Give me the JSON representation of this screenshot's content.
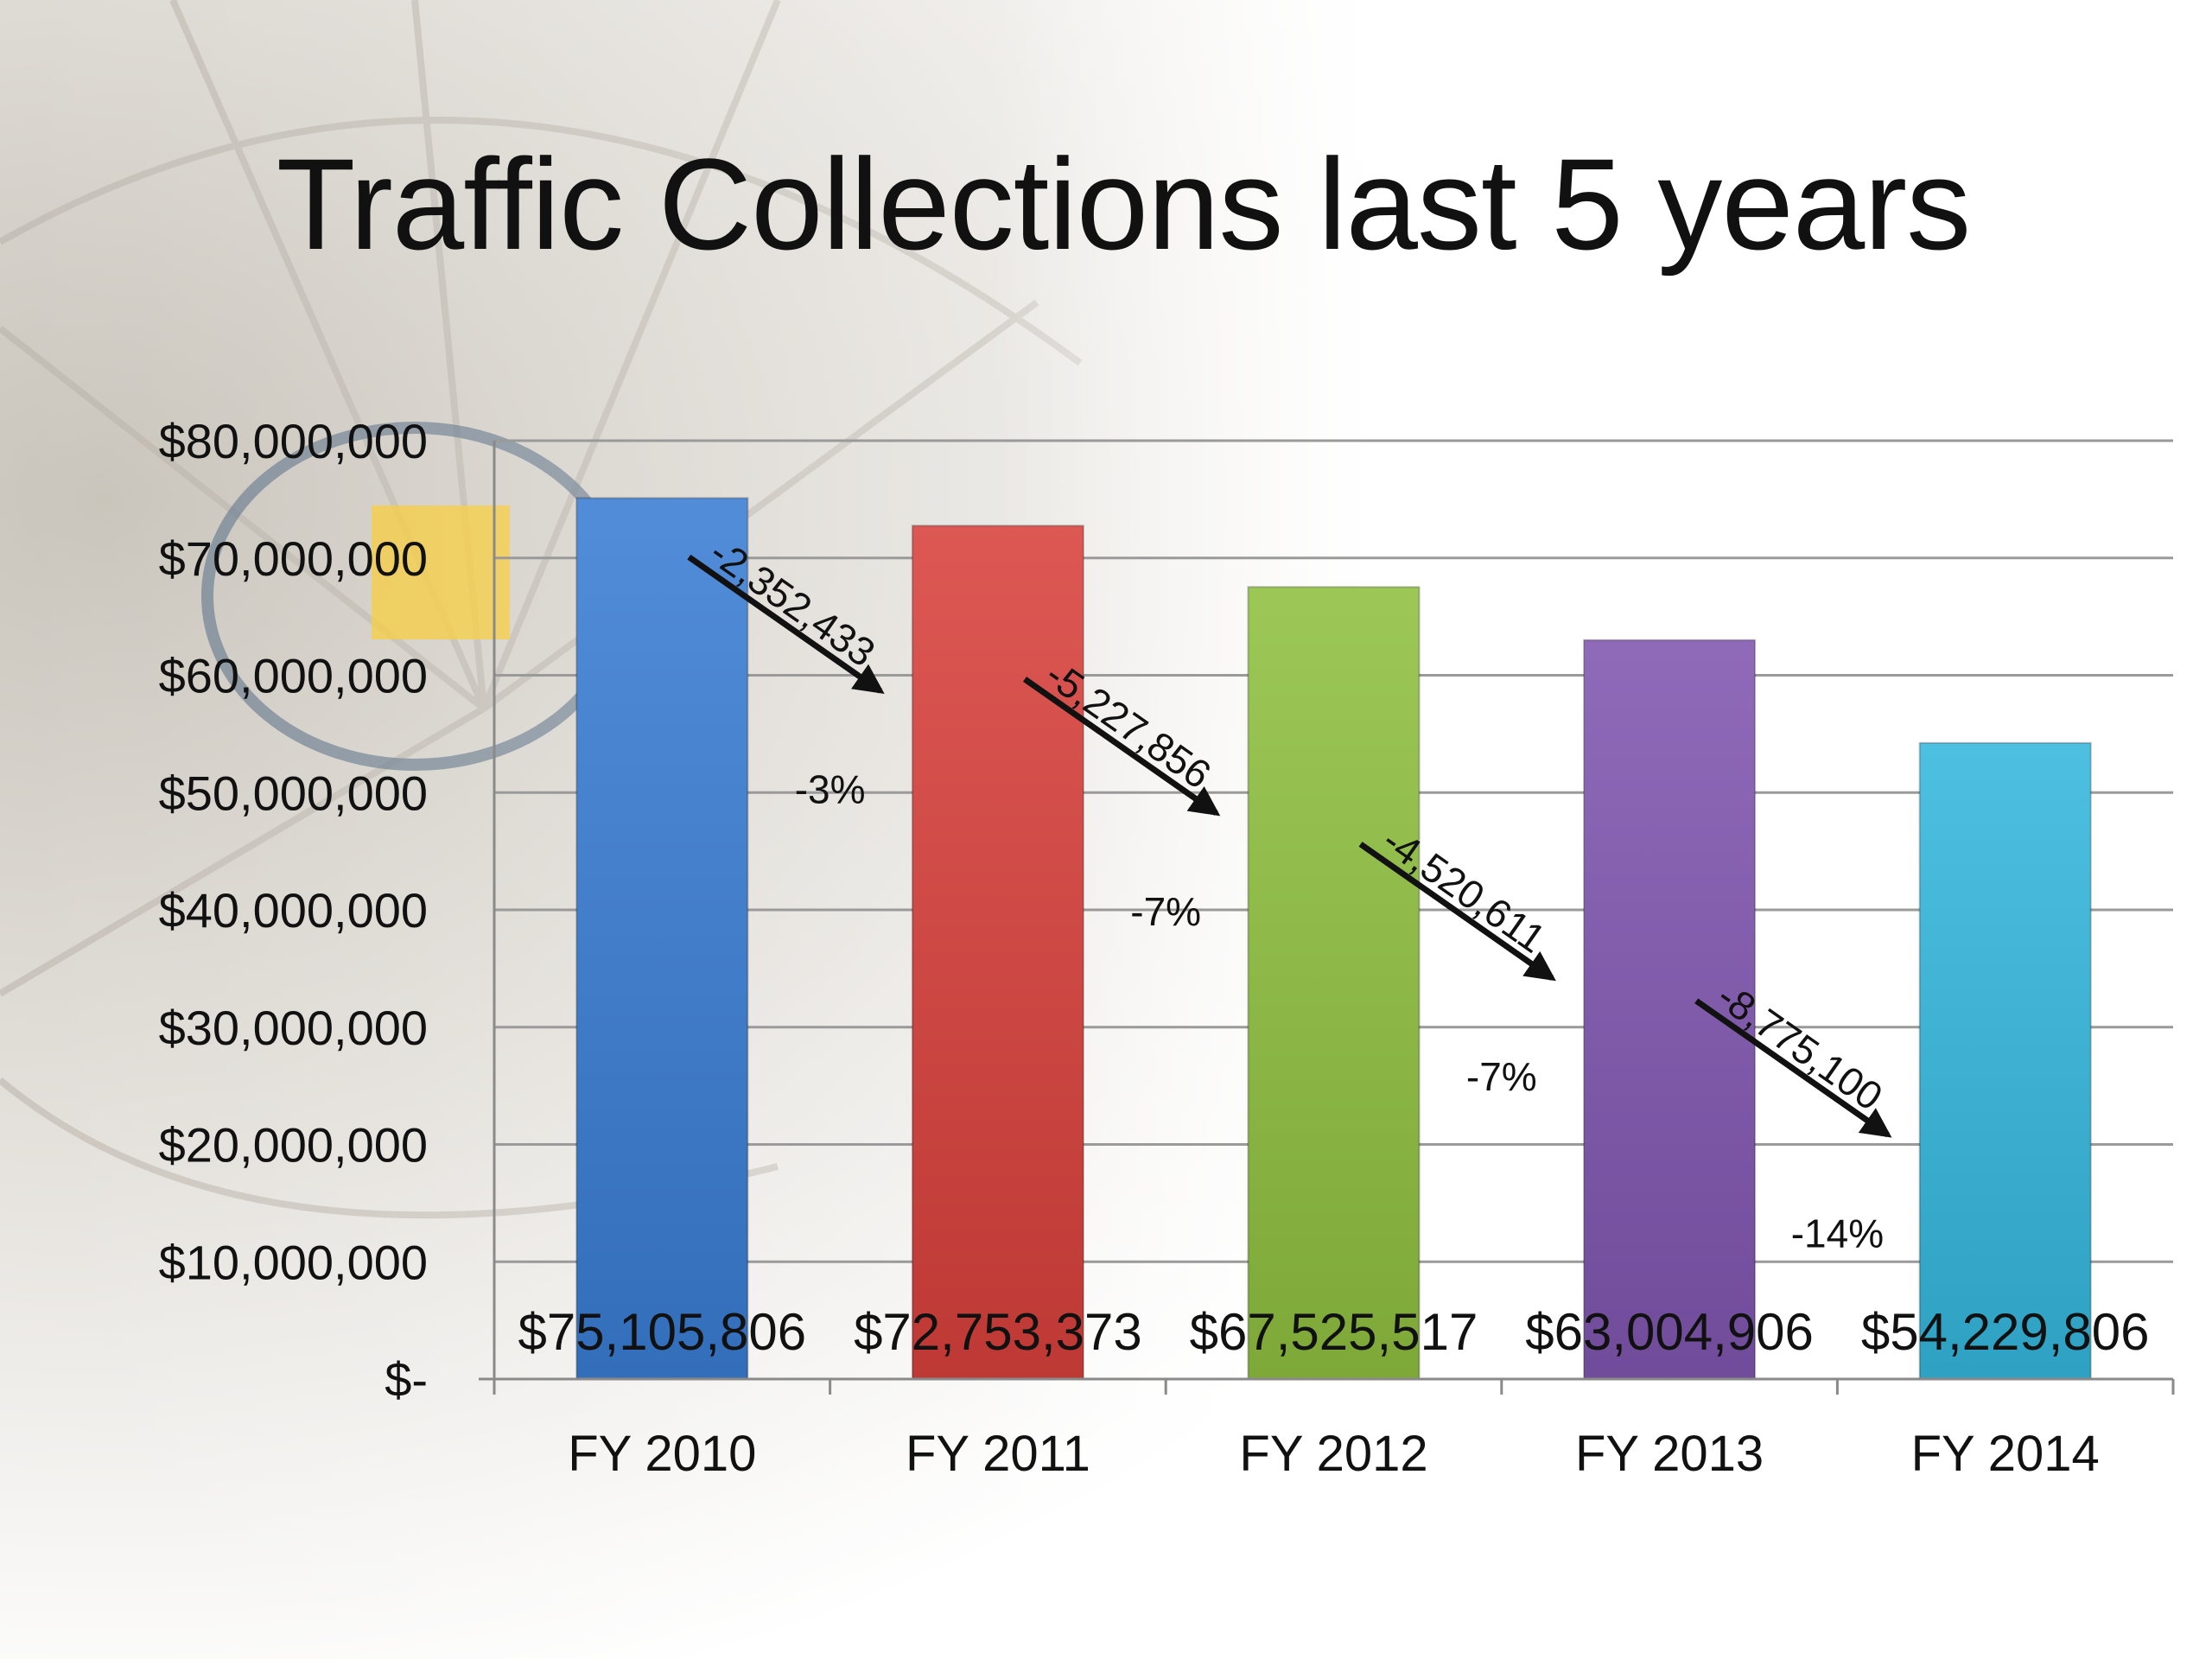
{
  "chart_data": {
    "type": "bar",
    "title": "Traffic Collections last 5 years",
    "categories": [
      "FY 2010",
      "FY 2011",
      "FY 2012",
      "FY 2013",
      "FY 2014"
    ],
    "values": [
      75105806,
      72753373,
      67525517,
      63004906,
      54229806
    ],
    "data_labels": [
      "$75,105,806",
      "$72,753,373",
      "$67,525,517",
      "$63,004,906",
      "$54,229,806"
    ],
    "bar_colors": [
      "#3a7dd4",
      "#d8413c",
      "#8fc040",
      "#8056b0",
      "#35b7dd"
    ],
    "ylim": [
      0,
      80000000
    ],
    "yticks": [
      0,
      10000000,
      20000000,
      30000000,
      40000000,
      50000000,
      60000000,
      70000000,
      80000000
    ],
    "ytick_labels": [
      "$-",
      "$10,000,000",
      "$20,000,000",
      "$30,000,000",
      "$40,000,000",
      "$50,000,000",
      "$60,000,000",
      "$70,000,000",
      "$80,000,000"
    ],
    "grid": true,
    "legend": "none",
    "annotations": [
      {
        "change": "-2,352,433",
        "percent": "-3%"
      },
      {
        "change": "-5,227,856",
        "percent": "-7%"
      },
      {
        "change": "-4,520,611",
        "percent": "-7%"
      },
      {
        "change": "-8,775,100",
        "percent": "-14%"
      }
    ]
  }
}
